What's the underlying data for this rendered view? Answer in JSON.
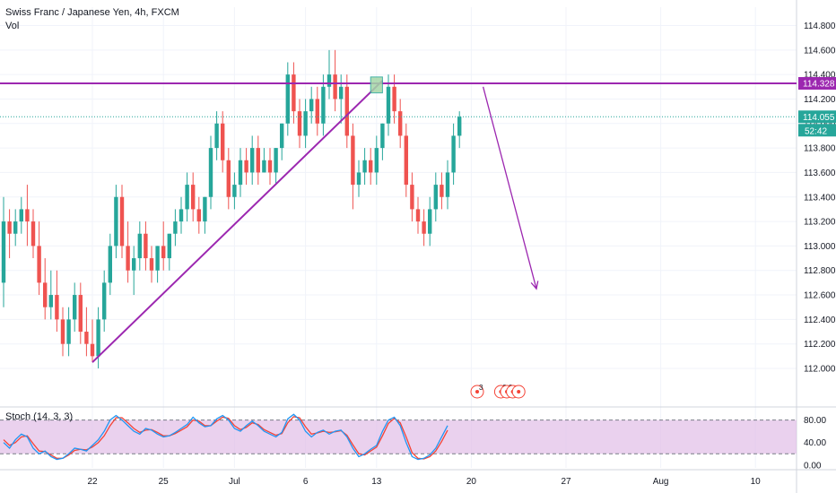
{
  "header": {
    "symbol_line": "Swiss Franc / Japanese Yen, 4h, FXCM",
    "volume_label": "Vol"
  },
  "stoch_label": "Stoch (14, 3, 3)",
  "colors": {
    "up": "#26a69a",
    "down": "#ef5350",
    "drawing": "#9c27b0",
    "stoch_k": "#2196f3",
    "stoch_d": "#f44336",
    "stoch_band": "#e1bee7",
    "last_price": "#26a69a",
    "price_dotted": "#26a69a",
    "event": "#f44336"
  },
  "chart_data": [
    {
      "type": "candlestick",
      "ylim": [
        111.7,
        114.95
      ],
      "y_ticks": [
        112.0,
        112.2,
        112.4,
        112.6,
        112.8,
        113.0,
        113.2,
        113.4,
        113.6,
        113.8,
        114.0,
        114.2,
        114.4,
        114.6,
        114.8
      ],
      "y_tick_labels": [
        "112.000",
        "112.200",
        "112.400",
        "112.600",
        "112.800",
        "113.000",
        "113.200",
        "113.400",
        "113.600",
        "113.800",
        "114.000",
        "114.200",
        "114.400",
        "114.600",
        "114.800"
      ],
      "x_tick_labels": [
        "22",
        "25",
        "Jul",
        "6",
        "13",
        "20",
        "27",
        "Aug",
        "10"
      ],
      "x_tick_index": [
        15,
        27,
        39,
        51,
        63,
        79,
        95,
        111,
        127
      ],
      "candles": [
        [
          112.7,
          113.4,
          113.2,
          112.5
        ],
        [
          113.2,
          113.3,
          113.1,
          112.9
        ],
        [
          113.1,
          113.3,
          113.2,
          113.0
        ],
        [
          113.2,
          113.4,
          113.3,
          113.1
        ],
        [
          113.3,
          113.5,
          113.2,
          113.0
        ],
        [
          113.2,
          113.3,
          113.0,
          112.9
        ],
        [
          113.0,
          113.2,
          112.7,
          112.6
        ],
        [
          112.7,
          112.9,
          112.5,
          112.4
        ],
        [
          112.5,
          112.8,
          112.6,
          112.4
        ],
        [
          112.6,
          112.8,
          112.4,
          112.3
        ],
        [
          112.4,
          112.5,
          112.2,
          112.1
        ],
        [
          112.2,
          112.5,
          112.4,
          112.1
        ],
        [
          112.4,
          112.7,
          112.6,
          112.3
        ],
        [
          112.6,
          112.7,
          112.3,
          112.2
        ],
        [
          112.3,
          112.5,
          112.2,
          112.1
        ],
        [
          112.2,
          112.4,
          112.1,
          112.05
        ],
        [
          112.1,
          112.5,
          112.4,
          112.0
        ],
        [
          112.4,
          112.8,
          112.7,
          112.3
        ],
        [
          112.7,
          113.1,
          113.0,
          112.6
        ],
        [
          113.0,
          113.5,
          113.4,
          112.9
        ],
        [
          113.4,
          113.5,
          113.0,
          112.9
        ],
        [
          113.0,
          113.2,
          112.8,
          112.7
        ],
        [
          112.8,
          113.0,
          112.9,
          112.6
        ],
        [
          112.9,
          113.2,
          113.1,
          112.8
        ],
        [
          113.1,
          113.2,
          112.9,
          112.8
        ],
        [
          112.9,
          113.0,
          112.8,
          112.7
        ],
        [
          112.8,
          113.0,
          113.0,
          112.7
        ],
        [
          113.0,
          113.2,
          112.9,
          112.8
        ],
        [
          112.9,
          113.1,
          113.1,
          112.8
        ],
        [
          113.1,
          113.3,
          113.2,
          113.0
        ],
        [
          113.2,
          113.4,
          113.3,
          113.1
        ],
        [
          113.3,
          113.6,
          113.5,
          113.2
        ],
        [
          113.5,
          113.6,
          113.3,
          113.2
        ],
        [
          113.3,
          113.4,
          113.2,
          113.1
        ],
        [
          113.2,
          113.4,
          113.4,
          113.1
        ],
        [
          113.4,
          113.9,
          113.8,
          113.3
        ],
        [
          113.8,
          114.1,
          114.0,
          113.7
        ],
        [
          114.0,
          114.1,
          113.7,
          113.6
        ],
        [
          113.7,
          113.8,
          113.4,
          113.3
        ],
        [
          113.4,
          113.6,
          113.5,
          113.3
        ],
        [
          113.5,
          113.8,
          113.7,
          113.4
        ],
        [
          113.7,
          113.8,
          113.6,
          113.5
        ],
        [
          113.6,
          113.9,
          113.8,
          113.5
        ],
        [
          113.8,
          113.9,
          113.6,
          113.5
        ],
        [
          113.6,
          113.8,
          113.7,
          113.6
        ],
        [
          113.7,
          113.8,
          113.6,
          113.5
        ],
        [
          113.6,
          113.8,
          113.8,
          113.5
        ],
        [
          113.8,
          114.0,
          114.0,
          113.7
        ],
        [
          114.0,
          114.5,
          114.4,
          113.9
        ],
        [
          114.4,
          114.5,
          114.1,
          114.0
        ],
        [
          114.1,
          114.2,
          113.9,
          113.8
        ],
        [
          113.9,
          114.2,
          114.1,
          113.8
        ],
        [
          114.1,
          114.3,
          114.2,
          114.0
        ],
        [
          114.2,
          114.3,
          114.0,
          113.9
        ],
        [
          114.0,
          114.4,
          114.3,
          113.9
        ],
        [
          114.3,
          114.6,
          114.4,
          114.2
        ],
        [
          114.4,
          114.6,
          114.2,
          114.1
        ],
        [
          114.2,
          114.4,
          114.3,
          114.0
        ],
        [
          114.3,
          114.4,
          113.9,
          113.8
        ],
        [
          113.9,
          114.0,
          113.5,
          113.3
        ],
        [
          113.5,
          113.7,
          113.6,
          113.4
        ],
        [
          113.6,
          113.8,
          113.7,
          113.5
        ],
        [
          113.7,
          113.8,
          113.6,
          113.5
        ],
        [
          113.6,
          113.9,
          113.8,
          113.5
        ],
        [
          113.8,
          114.0,
          114.0,
          113.7
        ],
        [
          114.0,
          114.4,
          114.3,
          113.9
        ],
        [
          114.3,
          114.4,
          114.1,
          114.0
        ],
        [
          114.1,
          114.2,
          113.9,
          113.8
        ],
        [
          113.9,
          114.0,
          113.5,
          113.4
        ],
        [
          113.5,
          113.6,
          113.3,
          113.2
        ],
        [
          113.3,
          113.4,
          113.2,
          113.1
        ],
        [
          113.2,
          113.3,
          113.1,
          113.0
        ],
        [
          113.1,
          113.4,
          113.3,
          113.0
        ],
        [
          113.3,
          113.6,
          113.5,
          113.2
        ],
        [
          113.5,
          113.6,
          113.4,
          113.3
        ],
        [
          113.4,
          113.7,
          113.6,
          113.3
        ],
        [
          113.6,
          114.0,
          113.9,
          113.5
        ],
        [
          113.9,
          114.1,
          114.055,
          113.8
        ]
      ],
      "resistance_level": 114.328,
      "last_price": 114.055,
      "price_label_resistance": "114.328",
      "price_label_last": "114.055",
      "countdown_label": "52:42",
      "trendline": [
        [
          15,
          112.05
        ],
        [
          64,
          114.35
        ]
      ],
      "forecast_arrow": [
        [
          81,
          114.3
        ],
        [
          90,
          112.65
        ]
      ],
      "highlight_box": [
        [
          62,
          114.25
        ],
        [
          64,
          114.38
        ]
      ],
      "event_markers": [
        {
          "index": 80,
          "label": "3"
        },
        {
          "index": 84,
          "label": "9"
        },
        {
          "index": 85,
          "label": "2"
        },
        {
          "index": 86,
          "label": ""
        },
        {
          "index": 87,
          "label": ""
        }
      ]
    },
    {
      "type": "line",
      "name": "Stoch (14, 3, 3)",
      "ylim": [
        -5,
        100
      ],
      "y_ticks": [
        0,
        40,
        80
      ],
      "y_tick_labels": [
        "0.00",
        "40.00",
        "80.00"
      ],
      "band": [
        20,
        80
      ],
      "k": [
        40,
        30,
        45,
        55,
        50,
        30,
        20,
        25,
        15,
        10,
        12,
        20,
        30,
        28,
        25,
        35,
        45,
        60,
        80,
        88,
        80,
        70,
        60,
        55,
        65,
        62,
        55,
        50,
        52,
        58,
        65,
        72,
        85,
        75,
        68,
        70,
        82,
        88,
        80,
        65,
        60,
        70,
        78,
        70,
        60,
        55,
        50,
        58,
        82,
        90,
        80,
        60,
        50,
        58,
        62,
        55,
        60,
        62,
        50,
        30,
        15,
        20,
        28,
        35,
        60,
        80,
        85,
        70,
        40,
        15,
        10,
        12,
        18,
        30,
        50,
        70
      ],
      "d": [
        45,
        35,
        40,
        50,
        52,
        38,
        25,
        24,
        18,
        12,
        12,
        18,
        26,
        28,
        27,
        32,
        40,
        52,
        70,
        84,
        84,
        75,
        65,
        58,
        62,
        63,
        58,
        52,
        52,
        56,
        62,
        68,
        80,
        78,
        70,
        70,
        78,
        85,
        83,
        70,
        63,
        67,
        75,
        72,
        63,
        58,
        53,
        56,
        75,
        86,
        84,
        68,
        55,
        57,
        60,
        58,
        59,
        61,
        53,
        36,
        20,
        18,
        25,
        32,
        52,
        74,
        83,
        75,
        50,
        22,
        12,
        11,
        15,
        25,
        42,
        62
      ]
    }
  ]
}
